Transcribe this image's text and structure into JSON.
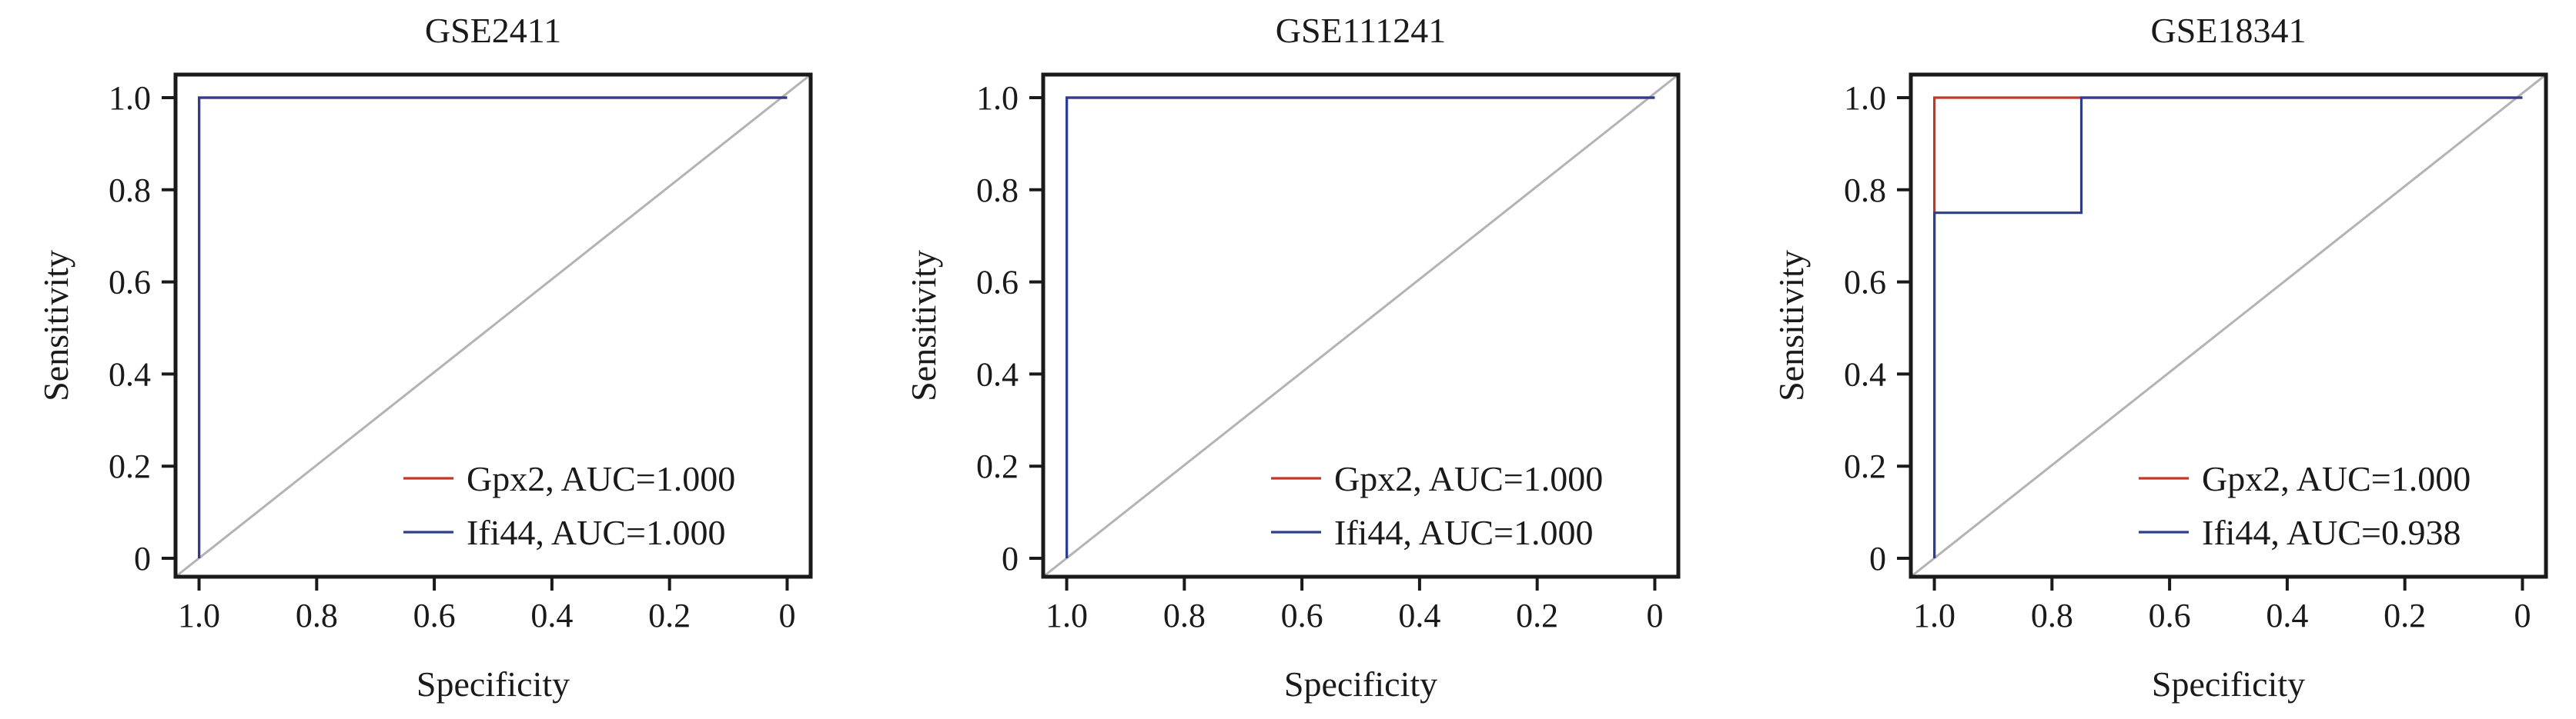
{
  "chart_data": [
    {
      "type": "line",
      "title": "GSE2411",
      "xlabel": "Specificity",
      "ylabel": "Sensitivity",
      "x_reversed": true,
      "xlim": [
        1.04,
        -0.04
      ],
      "ylim": [
        -0.04,
        1.05
      ],
      "xticks": [
        1.0,
        0.8,
        0.6,
        0.4,
        0.2,
        0
      ],
      "xtick_labels": [
        "1.0",
        "0.8",
        "0.6",
        "0.4",
        "0.2",
        "0"
      ],
      "yticks": [
        0,
        0.2,
        0.4,
        0.6,
        0.8,
        1.0
      ],
      "ytick_labels": [
        "0",
        "0.2",
        "0.4",
        "0.6",
        "0.8",
        "1.0"
      ],
      "grid": false,
      "legend_position": "bottom-right",
      "diagonal_color": "#b3b3b3",
      "series": [
        {
          "name": "Gpx2, AUC=1.000",
          "color": "#c0392b",
          "x": [
            1,
            1,
            0
          ],
          "y": [
            0,
            1,
            1
          ]
        },
        {
          "name": "Ifi44, AUC=1.000",
          "color": "#2c3e8c",
          "x": [
            1,
            1,
            0
          ],
          "y": [
            0,
            1,
            1
          ]
        }
      ]
    },
    {
      "type": "line",
      "title": "GSE111241",
      "xlabel": "Specificity",
      "ylabel": "Sensitivity",
      "x_reversed": true,
      "xlim": [
        1.04,
        -0.04
      ],
      "ylim": [
        -0.04,
        1.05
      ],
      "xticks": [
        1.0,
        0.8,
        0.6,
        0.4,
        0.2,
        0
      ],
      "xtick_labels": [
        "1.0",
        "0.8",
        "0.6",
        "0.4",
        "0.2",
        "0"
      ],
      "yticks": [
        0,
        0.2,
        0.4,
        0.6,
        0.8,
        1.0
      ],
      "ytick_labels": [
        "0",
        "0.2",
        "0.4",
        "0.6",
        "0.8",
        "1.0"
      ],
      "grid": false,
      "legend_position": "bottom-right",
      "diagonal_color": "#b3b3b3",
      "series": [
        {
          "name": "Gpx2, AUC=1.000",
          "color": "#c0392b",
          "x": [
            1,
            1,
            0
          ],
          "y": [
            0,
            1,
            1
          ]
        },
        {
          "name": "Ifi44, AUC=1.000",
          "color": "#2c3e8c",
          "x": [
            1,
            1,
            0
          ],
          "y": [
            0,
            1,
            1
          ]
        }
      ]
    },
    {
      "type": "line",
      "title": "GSE18341",
      "xlabel": "Specificity",
      "ylabel": "Sensitivity",
      "x_reversed": true,
      "xlim": [
        1.04,
        -0.04
      ],
      "ylim": [
        -0.04,
        1.05
      ],
      "xticks": [
        1.0,
        0.8,
        0.6,
        0.4,
        0.2,
        0
      ],
      "xtick_labels": [
        "1.0",
        "0.8",
        "0.6",
        "0.4",
        "0.2",
        "0"
      ],
      "yticks": [
        0,
        0.2,
        0.4,
        0.6,
        0.8,
        1.0
      ],
      "ytick_labels": [
        "0",
        "0.2",
        "0.4",
        "0.6",
        "0.8",
        "1.0"
      ],
      "grid": false,
      "legend_position": "bottom-right",
      "diagonal_color": "#b3b3b3",
      "series": [
        {
          "name": "Gpx2, AUC=1.000",
          "color": "#c0392b",
          "x": [
            1,
            1,
            0
          ],
          "y": [
            0,
            1,
            1
          ]
        },
        {
          "name": "Ifi44, AUC=0.938",
          "color": "#2c3e8c",
          "x": [
            1,
            1,
            0.75,
            0.75,
            0
          ],
          "y": [
            0,
            0.75,
            0.75,
            1,
            1
          ]
        }
      ]
    }
  ]
}
